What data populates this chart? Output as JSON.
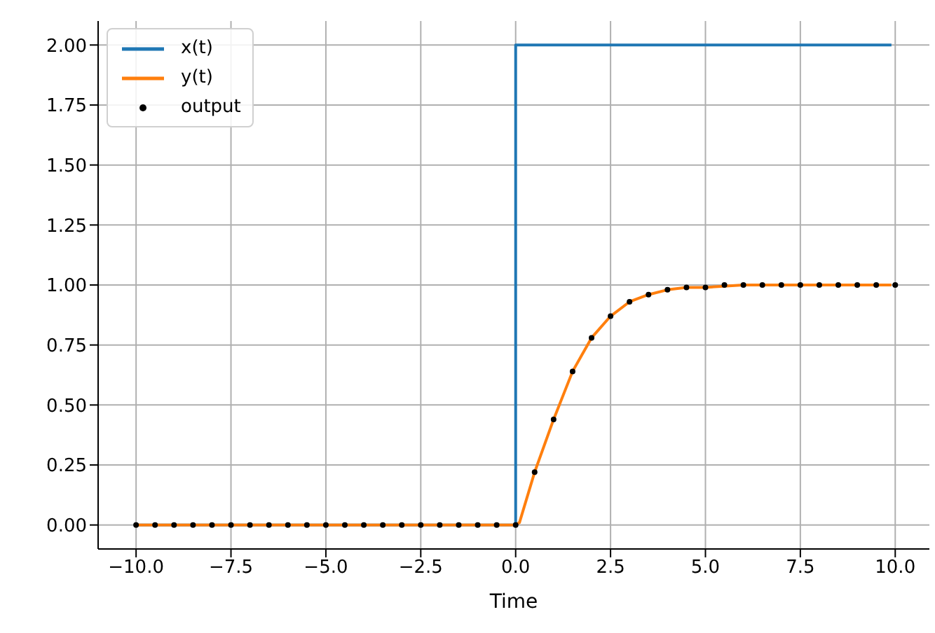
{
  "chart_data": {
    "type": "line",
    "xlabel": "Time",
    "series": [
      {
        "name": "x(t)",
        "color": "#1f77b4",
        "x": [
          -10,
          0,
          0,
          9.9
        ],
        "values": [
          0,
          0,
          2,
          2
        ]
      },
      {
        "name": "y(t)",
        "color": "#ff7f0e",
        "x": [
          -10,
          0,
          0.1,
          0.5,
          1,
          1.5,
          2,
          2.5,
          3,
          3.5,
          4,
          4.5,
          5,
          6,
          9.9
        ],
        "values": [
          0,
          0,
          0.01,
          0.22,
          0.44,
          0.64,
          0.78,
          0.87,
          0.93,
          0.96,
          0.98,
          0.99,
          0.99,
          1,
          1
        ]
      },
      {
        "name": "output",
        "type": "scatter",
        "color": "#000000",
        "marker": "circle",
        "x": [
          -10,
          -9.5,
          -9,
          -8.5,
          -8,
          -7.5,
          -7,
          -6.5,
          -6,
          -5.5,
          -5,
          -4.5,
          -4,
          -3.5,
          -3,
          -2.5,
          -2,
          -1.5,
          -1,
          -0.5,
          0,
          0.5,
          1,
          1.5,
          2,
          2.5,
          3,
          3.5,
          4,
          4.5,
          5,
          5.5,
          6,
          6.5,
          7,
          7.5,
          8,
          8.5,
          9,
          9.5,
          10
        ],
        "values": [
          0,
          0,
          0,
          0,
          0,
          0,
          0,
          0,
          0,
          0,
          0,
          0,
          0,
          0,
          0,
          0,
          0,
          0,
          0,
          0,
          0,
          0.22,
          0.44,
          0.64,
          0.78,
          0.87,
          0.93,
          0.96,
          0.98,
          0.99,
          0.99,
          1,
          1,
          1,
          1,
          1,
          1,
          1,
          1,
          1,
          1
        ]
      }
    ],
    "xlim": [
      -11,
      10.9
    ],
    "xticks": [
      {
        "value": -10,
        "label": "−10.0"
      },
      {
        "value": -7.5,
        "label": "−7.5"
      },
      {
        "value": -5,
        "label": "−5.0"
      },
      {
        "value": -2.5,
        "label": "−2.5"
      },
      {
        "value": 0,
        "label": "0.0"
      },
      {
        "value": 2.5,
        "label": "2.5"
      },
      {
        "value": 5,
        "label": "5.0"
      },
      {
        "value": 7.5,
        "label": "7.5"
      },
      {
        "value": 10,
        "label": "10.0"
      }
    ],
    "ylim": [
      -0.1,
      2.1
    ],
    "yticks": [
      {
        "value": 0,
        "label": "0.00"
      },
      {
        "value": 0.25,
        "label": "0.25"
      },
      {
        "value": 0.5,
        "label": "0.50"
      },
      {
        "value": 0.75,
        "label": "0.75"
      },
      {
        "value": 1,
        "label": "1.00"
      },
      {
        "value": 1.25,
        "label": "1.25"
      },
      {
        "value": 1.5,
        "label": "1.50"
      },
      {
        "value": 1.75,
        "label": "1.75"
      },
      {
        "value": 2,
        "label": "2.00"
      }
    ],
    "grid": true,
    "legend": "top left"
  }
}
